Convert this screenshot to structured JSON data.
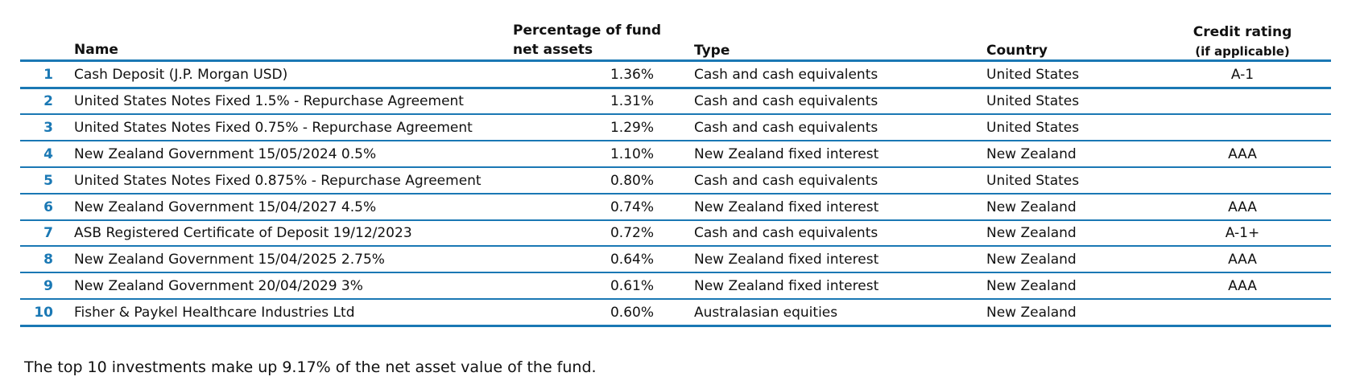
{
  "table": {
    "headers": {
      "name": "Name",
      "percentage_line1": "Percentage of fund",
      "percentage_line2": "net assets",
      "type": "Type",
      "country": "Country",
      "credit_line1": "Credit rating",
      "credit_line2": "(if applicable)"
    },
    "rows": [
      {
        "num": "1",
        "name": "Cash Deposit (J.P. Morgan USD)",
        "pct": "1.36%",
        "type": "Cash and cash equivalents",
        "country": "United States",
        "rating": "A-1"
      },
      {
        "num": "2",
        "name": "United States Notes Fixed 1.5% - Repurchase Agreement",
        "pct": "1.31%",
        "type": "Cash and cash equivalents",
        "country": "United States",
        "rating": ""
      },
      {
        "num": "3",
        "name": "United States Notes Fixed 0.75% - Repurchase Agreement",
        "pct": "1.29%",
        "type": "Cash and cash equivalents",
        "country": "United States",
        "rating": ""
      },
      {
        "num": "4",
        "name": "New Zealand Government 15/05/2024 0.5%",
        "pct": "1.10%",
        "type": "New Zealand fixed interest",
        "country": "New Zealand",
        "rating": "AAA"
      },
      {
        "num": "5",
        "name": "United States Notes Fixed 0.875% - Repurchase Agreement",
        "pct": "0.80%",
        "type": "Cash and cash equivalents",
        "country": "United States",
        "rating": ""
      },
      {
        "num": "6",
        "name": "New Zealand Government 15/04/2027 4.5%",
        "pct": "0.74%",
        "type": "New Zealand fixed interest",
        "country": "New Zealand",
        "rating": "AAA"
      },
      {
        "num": "7",
        "name": "ASB Registered Certificate of Deposit 19/12/2023",
        "pct": "0.72%",
        "type": "Cash and cash equivalents",
        "country": "New Zealand",
        "rating": "A-1+"
      },
      {
        "num": "8",
        "name": "New Zealand Government 15/04/2025 2.75%",
        "pct": "0.64%",
        "type": "New Zealand fixed interest",
        "country": "New Zealand",
        "rating": "AAA"
      },
      {
        "num": "9",
        "name": "New Zealand Government 20/04/2029 3%",
        "pct": "0.61%",
        "type": "New Zealand fixed interest",
        "country": "New Zealand",
        "rating": "AAA"
      },
      {
        "num": "10",
        "name": "Fisher & Paykel Healthcare Industries Ltd",
        "pct": "0.60%",
        "type": "Australasian equities",
        "country": "New Zealand",
        "rating": ""
      }
    ]
  },
  "footer": "The top 10 investments make up 9.17% of the net asset value of the fund.",
  "colors": {
    "accent": "#1a78b4"
  }
}
